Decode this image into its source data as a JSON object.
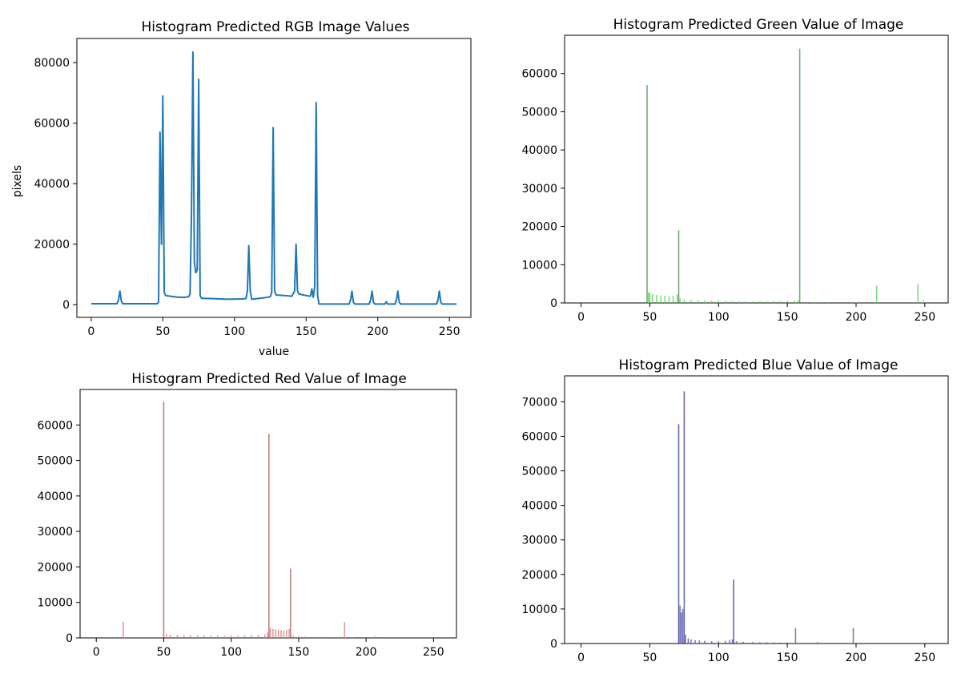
{
  "chart_data": [
    {
      "type": "line",
      "title": "Histogram Predicted RGB Image Values",
      "xlabel": "value",
      "ylabel": "pixels",
      "xlim": [
        -10,
        265
      ],
      "ylim": [
        -4200,
        88000
      ],
      "xticks": [
        0,
        50,
        100,
        150,
        200,
        250
      ],
      "yticks": [
        0,
        20000,
        40000,
        60000,
        80000
      ],
      "color": "#1f77b4",
      "points": [
        [
          0,
          300
        ],
        [
          18,
          300
        ],
        [
          19,
          1500
        ],
        [
          20,
          4500
        ],
        [
          21,
          1200
        ],
        [
          22,
          300
        ],
        [
          46,
          300
        ],
        [
          47,
          800
        ],
        [
          48,
          57000
        ],
        [
          49,
          20000
        ],
        [
          50,
          69000
        ],
        [
          51,
          4000
        ],
        [
          52,
          3000
        ],
        [
          55,
          2800
        ],
        [
          60,
          2500
        ],
        [
          65,
          2400
        ],
        [
          68,
          2600
        ],
        [
          69,
          3500
        ],
        [
          70,
          30000
        ],
        [
          71,
          83500
        ],
        [
          72,
          14000
        ],
        [
          73,
          10500
        ],
        [
          74,
          11500
        ],
        [
          75,
          74500
        ],
        [
          76,
          3000
        ],
        [
          77,
          2100
        ],
        [
          85,
          2000
        ],
        [
          95,
          1800
        ],
        [
          105,
          1900
        ],
        [
          108,
          2000
        ],
        [
          109,
          4500
        ],
        [
          110,
          19500
        ],
        [
          111,
          4500
        ],
        [
          112,
          1800
        ],
        [
          120,
          2200
        ],
        [
          125,
          2600
        ],
        [
          126,
          4000
        ],
        [
          127,
          58500
        ],
        [
          128,
          4500
        ],
        [
          129,
          3200
        ],
        [
          135,
          3000
        ],
        [
          140,
          2800
        ],
        [
          142,
          4500
        ],
        [
          143,
          20000
        ],
        [
          144,
          4500
        ],
        [
          145,
          3500
        ],
        [
          150,
          3000
        ],
        [
          153,
          2800
        ],
        [
          154,
          5200
        ],
        [
          155,
          2400
        ],
        [
          156,
          6000
        ],
        [
          157,
          66800
        ],
        [
          158,
          3000
        ],
        [
          159,
          200
        ],
        [
          180,
          200
        ],
        [
          181,
          1500
        ],
        [
          182,
          4500
        ],
        [
          183,
          800
        ],
        [
          184,
          200
        ],
        [
          194,
          200
        ],
        [
          195,
          1500
        ],
        [
          196,
          4500
        ],
        [
          197,
          800
        ],
        [
          198,
          200
        ],
        [
          205,
          200
        ],
        [
          206,
          1000
        ],
        [
          207,
          200
        ],
        [
          212,
          200
        ],
        [
          213,
          1500
        ],
        [
          214,
          4500
        ],
        [
          215,
          800
        ],
        [
          216,
          200
        ],
        [
          241,
          200
        ],
        [
          242,
          1500
        ],
        [
          243,
          4500
        ],
        [
          244,
          800
        ],
        [
          245,
          200
        ],
        [
          255,
          200
        ]
      ]
    },
    {
      "type": "bar",
      "title": "Histogram Predicted Green Value of Image",
      "xlabel": "",
      "ylabel": "",
      "xlim": [
        -12,
        267
      ],
      "ylim": [
        0,
        70000
      ],
      "xticks": [
        0,
        50,
        100,
        150,
        200,
        250
      ],
      "yticks": [
        0,
        10000,
        20000,
        30000,
        40000,
        50000,
        60000
      ],
      "color": "#2e7d32",
      "color_light": "#5fd35f",
      "bars": [
        [
          48,
          57000
        ],
        [
          49,
          2800
        ],
        [
          50,
          2600
        ],
        [
          52,
          2300
        ],
        [
          55,
          2100
        ],
        [
          58,
          2000
        ],
        [
          61,
          1900
        ],
        [
          64,
          1800
        ],
        [
          67,
          1900
        ],
        [
          70,
          2200
        ],
        [
          71,
          19000
        ],
        [
          72,
          1200
        ],
        [
          75,
          900
        ],
        [
          80,
          800
        ],
        [
          85,
          700
        ],
        [
          90,
          650
        ],
        [
          95,
          600
        ],
        [
          100,
          550
        ],
        [
          105,
          500
        ],
        [
          110,
          480
        ],
        [
          115,
          450
        ],
        [
          120,
          450
        ],
        [
          125,
          450
        ],
        [
          130,
          450
        ],
        [
          135,
          450
        ],
        [
          140,
          480
        ],
        [
          145,
          500
        ],
        [
          150,
          550
        ],
        [
          155,
          600
        ],
        [
          158,
          700
        ],
        [
          159,
          66500
        ],
        [
          170,
          200
        ],
        [
          175,
          250
        ],
        [
          180,
          200
        ],
        [
          200,
          100
        ],
        [
          215,
          4500
        ],
        [
          245,
          5000
        ],
        [
          249,
          600
        ]
      ]
    },
    {
      "type": "bar",
      "title": "Histogram Predicted Red Value of Image",
      "xlabel": "",
      "ylabel": "",
      "xlim": [
        -12,
        267
      ],
      "ylim": [
        0,
        70000
      ],
      "xticks": [
        0,
        50,
        100,
        150,
        200,
        250
      ],
      "yticks": [
        0,
        10000,
        20000,
        30000,
        40000,
        50000,
        60000
      ],
      "color": "#a0403a",
      "color_light": "#e08080",
      "bars": [
        [
          20,
          4500
        ],
        [
          50,
          66500
        ],
        [
          52,
          1200
        ],
        [
          55,
          900
        ],
        [
          60,
          850
        ],
        [
          65,
          800
        ],
        [
          70,
          750
        ],
        [
          75,
          720
        ],
        [
          80,
          700
        ],
        [
          85,
          680
        ],
        [
          90,
          660
        ],
        [
          95,
          640
        ],
        [
          100,
          650
        ],
        [
          105,
          680
        ],
        [
          110,
          720
        ],
        [
          115,
          780
        ],
        [
          120,
          850
        ],
        [
          125,
          1000
        ],
        [
          127,
          1500
        ],
        [
          128,
          57500
        ],
        [
          129,
          2800
        ],
        [
          131,
          2600
        ],
        [
          133,
          2400
        ],
        [
          135,
          2300
        ],
        [
          137,
          2200
        ],
        [
          139,
          2100
        ],
        [
          141,
          2300
        ],
        [
          143,
          2500
        ],
        [
          144,
          19500
        ],
        [
          146,
          700
        ],
        [
          150,
          500
        ],
        [
          155,
          400
        ],
        [
          160,
          350
        ],
        [
          165,
          300
        ],
        [
          170,
          300
        ],
        [
          175,
          250
        ],
        [
          180,
          250
        ],
        [
          184,
          4500
        ],
        [
          190,
          200
        ],
        [
          207,
          500
        ]
      ]
    },
    {
      "type": "bar",
      "title": "Histogram Predicted Blue Value of Image",
      "xlabel": "",
      "ylabel": "",
      "xlim": [
        -12,
        267
      ],
      "ylim": [
        0,
        77500
      ],
      "xticks": [
        0,
        50,
        100,
        150,
        200,
        250
      ],
      "yticks": [
        0,
        10000,
        20000,
        30000,
        40000,
        50000,
        60000,
        70000
      ],
      "color": "#1a1a6e",
      "color_light": "#5a5ab8",
      "bars": [
        [
          71,
          63500
        ],
        [
          72,
          11000
        ],
        [
          73,
          9000
        ],
        [
          74,
          10000
        ],
        [
          75,
          73000
        ],
        [
          76,
          2500
        ],
        [
          78,
          1500
        ],
        [
          80,
          1200
        ],
        [
          83,
          1000
        ],
        [
          86,
          900
        ],
        [
          90,
          800
        ],
        [
          95,
          700
        ],
        [
          100,
          650
        ],
        [
          105,
          800
        ],
        [
          108,
          1000
        ],
        [
          110,
          1200
        ],
        [
          111,
          18500
        ],
        [
          113,
          700
        ],
        [
          118,
          500
        ],
        [
          125,
          450
        ],
        [
          130,
          400
        ],
        [
          135,
          400
        ],
        [
          140,
          350
        ],
        [
          145,
          300
        ],
        [
          150,
          300
        ],
        [
          156,
          4500
        ],
        [
          160,
          200
        ],
        [
          165,
          150
        ],
        [
          172,
          400
        ],
        [
          198,
          4500
        ]
      ]
    }
  ]
}
